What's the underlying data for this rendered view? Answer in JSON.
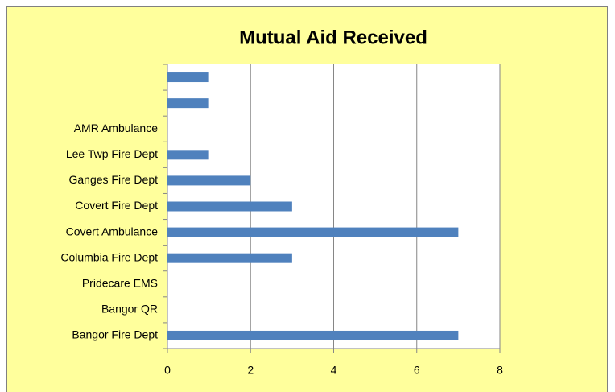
{
  "chart_data": {
    "type": "bar",
    "orientation": "horizontal",
    "title": "Mutual Aid Received",
    "categories": [
      "Bangor Fire Dept",
      "Bangor QR",
      "Pridecare EMS",
      "Columbia Fire Dept",
      "Covert Ambulance",
      "Covert Fire Dept",
      "Ganges Fire Dept",
      "Lee Twp Fire Dept",
      "AMR Ambulance",
      null,
      null
    ],
    "values": [
      7,
      0,
      0,
      3,
      7,
      3,
      2,
      1,
      0,
      1,
      1
    ],
    "color": "#4f81bd",
    "xlim": [
      0,
      8
    ],
    "xticks": [
      0,
      2,
      4,
      6,
      8
    ],
    "grid": true
  }
}
